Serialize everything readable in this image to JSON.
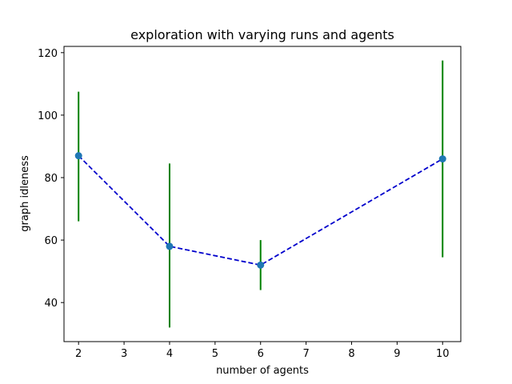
{
  "chart_data": {
    "type": "line",
    "title": "exploration with varying runs and agents",
    "xlabel": "number of agents",
    "ylabel": "graph idleness",
    "xlim": [
      1.68,
      10.4
    ],
    "ylim": [
      27.5,
      122
    ],
    "xticks": [
      2,
      3,
      4,
      5,
      6,
      7,
      8,
      9,
      10
    ],
    "yticks": [
      40,
      60,
      80,
      100,
      120
    ],
    "grid": false,
    "series": [
      {
        "x": [
          2,
          4,
          6,
          10
        ],
        "y": [
          87,
          58,
          52,
          86
        ],
        "yerr_low": [
          66,
          32,
          44,
          54.5
        ],
        "yerr_high": [
          107.5,
          84.5,
          60,
          117.5
        ],
        "line_color": "#0000cc",
        "line_style": "dashed",
        "marker_color": "#1f77b4",
        "errorbar_color": "#008000"
      }
    ]
  }
}
